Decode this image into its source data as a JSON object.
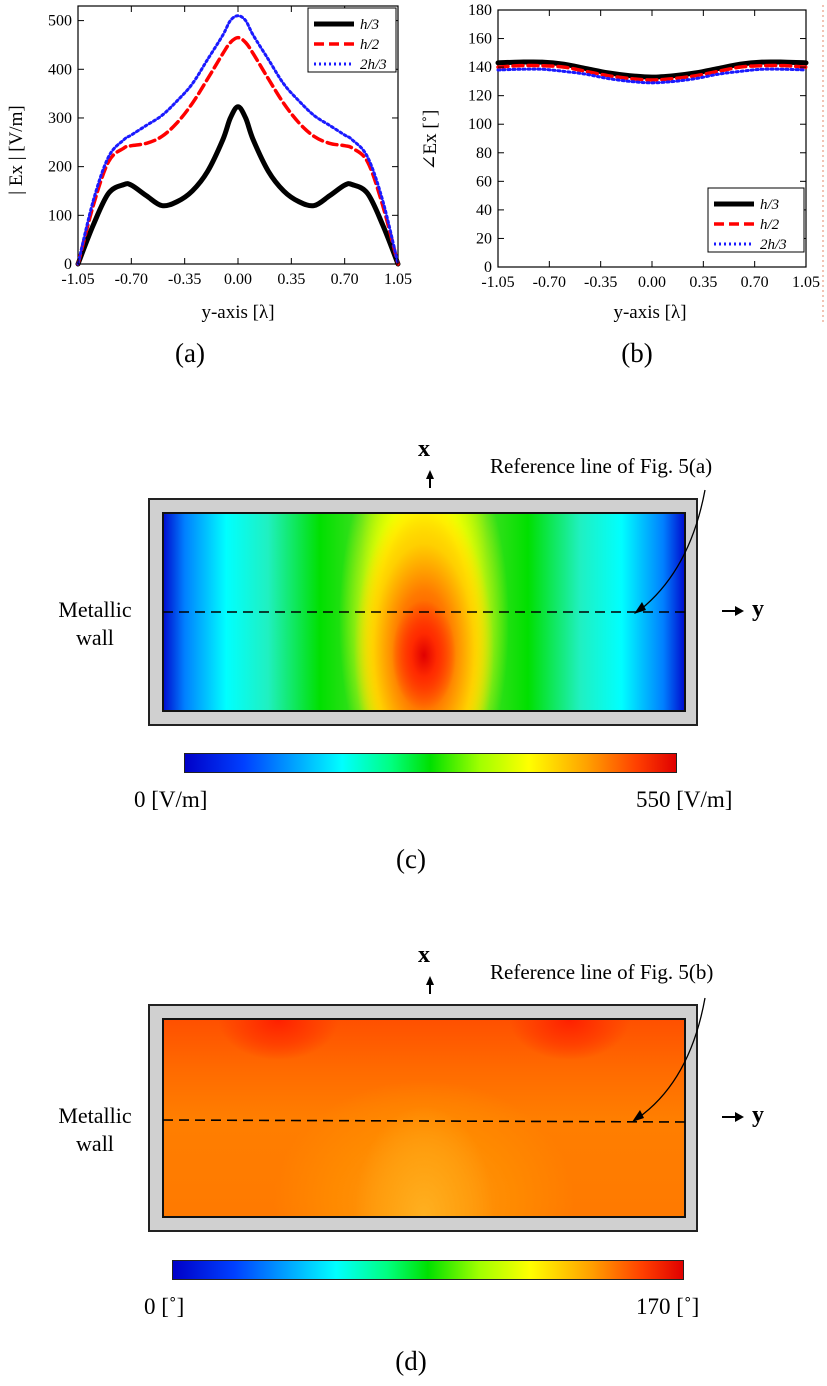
{
  "figure": {
    "captions": [
      "(a)",
      "(b)",
      "(c)",
      "(d)"
    ]
  },
  "panel_c": {
    "x_tag": "x",
    "y_tag": "y",
    "wall_label_1": "Metallic",
    "wall_label_2": "wall",
    "reference_label": "Reference line of Fig. 5(a)",
    "cbar_min_label": "0 [V/m]",
    "cbar_max_label": "550 [V/m]"
  },
  "panel_d": {
    "x_tag": "x",
    "y_tag": "y",
    "wall_label_1": "Metallic",
    "wall_label_2": "wall",
    "reference_label": "Reference line of Fig. 5(b)",
    "cbar_min_label": "0 [˚]",
    "cbar_max_label": "170 [˚]"
  },
  "chart_data": [
    {
      "type": "line",
      "panel": "a",
      "title": "",
      "xlabel": "y-axis [λ]",
      "ylabel": "| Ex | [V/m]",
      "xlim": [
        -1.05,
        1.05
      ],
      "ylim": [
        0,
        530
      ],
      "xticks": [
        "-1.05",
        "-0.70",
        "-0.35",
        "0.00",
        "0.35",
        "0.70",
        "1.05"
      ],
      "yticks": [
        "0",
        "100",
        "200",
        "300",
        "400",
        "500"
      ],
      "legend_position": "top-right",
      "x": [
        -1.05,
        -0.95,
        -0.85,
        -0.75,
        -0.7,
        -0.6,
        -0.5,
        -0.4,
        -0.3,
        -0.2,
        -0.1,
        -0.05,
        0.0,
        0.05,
        0.1,
        0.2,
        0.3,
        0.4,
        0.5,
        0.6,
        0.7,
        0.75,
        0.85,
        0.95,
        1.05
      ],
      "series": [
        {
          "name": "h/3",
          "color": "#000000",
          "dash": "solid",
          "values": [
            0,
            80,
            145,
            163,
            162,
            140,
            120,
            128,
            150,
            190,
            255,
            300,
            323,
            300,
            255,
            190,
            150,
            128,
            120,
            140,
            162,
            163,
            145,
            80,
            0
          ]
        },
        {
          "name": "h/2",
          "color": "#ff0000",
          "dash": "dashed",
          "values": [
            0,
            120,
            210,
            238,
            243,
            248,
            262,
            290,
            330,
            380,
            432,
            455,
            465,
            455,
            432,
            380,
            330,
            290,
            262,
            248,
            243,
            238,
            210,
            120,
            0
          ]
        },
        {
          "name": "2h/3",
          "color": "#1a1aff",
          "dash": "dotted",
          "values": [
            0,
            130,
            220,
            255,
            265,
            285,
            305,
            335,
            370,
            420,
            470,
            500,
            510,
            500,
            470,
            420,
            370,
            335,
            305,
            285,
            265,
            255,
            220,
            130,
            0
          ]
        }
      ]
    },
    {
      "type": "line",
      "panel": "b",
      "title": "",
      "xlabel": "y-axis [λ]",
      "ylabel": "∠Ex [˚]",
      "xlim": [
        -1.05,
        1.05
      ],
      "ylim": [
        0,
        180
      ],
      "xticks": [
        "-1.05",
        "-0.70",
        "-0.35",
        "0.00",
        "0.35",
        "0.70",
        "1.05"
      ],
      "yticks": [
        "0",
        "20",
        "40",
        "60",
        "80",
        "100",
        "120",
        "140",
        "160",
        "180"
      ],
      "legend_position": "bottom-right",
      "x": [
        -1.05,
        -0.9,
        -0.75,
        -0.6,
        -0.45,
        -0.3,
        -0.15,
        0.0,
        0.15,
        0.3,
        0.45,
        0.6,
        0.75,
        0.9,
        1.05
      ],
      "series": [
        {
          "name": "h/3",
          "color": "#000000",
          "dash": "solid",
          "values": [
            143,
            143.5,
            143.5,
            142,
            139,
            136,
            134,
            133,
            134,
            136,
            139,
            142,
            143.5,
            143.5,
            143
          ]
        },
        {
          "name": "h/2",
          "color": "#ff0000",
          "dash": "dashed",
          "values": [
            140,
            141,
            141,
            140,
            137,
            134,
            132,
            131,
            132,
            134,
            137,
            140,
            141,
            141,
            140
          ]
        },
        {
          "name": "2h/3",
          "color": "#1a1aff",
          "dash": "dotted",
          "values": [
            138,
            138.5,
            138.5,
            137,
            135,
            132,
            130,
            129,
            130,
            132,
            135,
            137,
            138.5,
            138.5,
            138
          ]
        }
      ]
    },
    {
      "type": "heatmap",
      "panel": "c",
      "title": "",
      "colorbar_range": [
        0,
        550
      ],
      "colorbar_unit": "V/m",
      "colorscale": "jet",
      "description_values": "peak near center-bottom, zero at left/right walls"
    },
    {
      "type": "heatmap",
      "panel": "d",
      "title": "",
      "colorbar_range": [
        0,
        170
      ],
      "colorbar_unit": "deg",
      "colorscale": "jet"
    }
  ]
}
